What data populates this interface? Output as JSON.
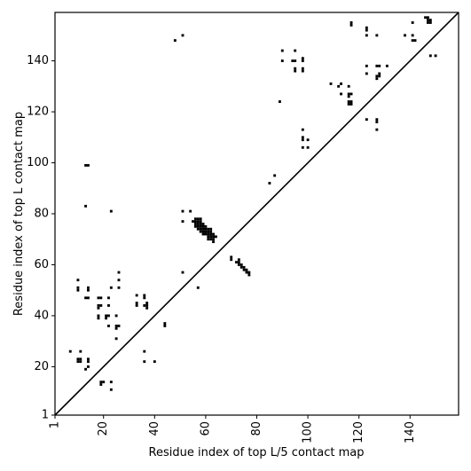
{
  "chart_data": {
    "type": "scatter",
    "title": "",
    "xlabel": "Residue index of top L/5 contact map",
    "ylabel": "Residue index of top L contact map",
    "xlim": [
      1,
      159
    ],
    "ylim": [
      1,
      159
    ],
    "xticks": [
      1,
      20,
      40,
      60,
      80,
      100,
      120,
      140
    ],
    "yticks": [
      1,
      20,
      40,
      60,
      80,
      100,
      120,
      140
    ],
    "grid": false,
    "diagonal": {
      "from": [
        1,
        1
      ],
      "to": [
        159,
        159
      ],
      "color": "#000000"
    },
    "marker_color": "#000000",
    "series": [
      {
        "name": "",
        "points": [
          [
            14,
            99
          ],
          [
            13,
            99
          ],
          [
            13,
            83
          ],
          [
            23,
            81
          ],
          [
            10,
            54
          ],
          [
            10,
            51
          ],
          [
            10,
            50
          ],
          [
            14,
            51
          ],
          [
            14,
            50
          ],
          [
            13,
            47
          ],
          [
            14,
            47
          ],
          [
            18,
            47
          ],
          [
            19,
            47
          ],
          [
            22,
            47
          ],
          [
            18,
            44
          ],
          [
            19,
            44
          ],
          [
            18,
            43
          ],
          [
            22,
            44
          ],
          [
            18,
            40
          ],
          [
            21,
            40
          ],
          [
            22,
            40
          ],
          [
            25,
            40
          ],
          [
            18,
            39
          ],
          [
            21,
            39
          ],
          [
            22,
            36
          ],
          [
            25,
            36
          ],
          [
            25,
            35
          ],
          [
            26,
            36
          ],
          [
            25,
            31
          ],
          [
            23,
            51
          ],
          [
            26,
            51
          ],
          [
            26,
            54
          ],
          [
            26,
            57
          ],
          [
            33,
            48
          ],
          [
            36,
            48
          ],
          [
            36,
            47
          ],
          [
            33,
            45
          ],
          [
            36,
            44
          ],
          [
            33,
            44
          ],
          [
            37,
            43
          ],
          [
            37,
            44
          ],
          [
            37,
            45
          ],
          [
            44,
            37
          ],
          [
            44,
            36
          ],
          [
            7,
            26
          ],
          [
            11,
            26
          ],
          [
            10,
            23
          ],
          [
            11,
            23
          ],
          [
            10,
            22
          ],
          [
            11,
            22
          ],
          [
            14,
            23
          ],
          [
            14,
            22
          ],
          [
            14,
            20
          ],
          [
            13,
            19
          ],
          [
            19,
            14
          ],
          [
            20,
            14
          ],
          [
            19,
            13
          ],
          [
            23,
            14
          ],
          [
            23,
            11
          ],
          [
            36,
            26
          ],
          [
            36,
            22
          ],
          [
            40,
            22
          ],
          [
            51,
            81
          ],
          [
            54,
            81
          ],
          [
            51,
            77
          ],
          [
            56,
            78
          ],
          [
            57,
            78
          ],
          [
            58,
            78
          ],
          [
            56,
            77
          ],
          [
            57,
            77
          ],
          [
            58,
            77
          ],
          [
            55,
            77
          ],
          [
            56,
            76
          ],
          [
            57,
            76
          ],
          [
            58,
            76
          ],
          [
            59,
            76
          ],
          [
            56,
            75
          ],
          [
            57,
            75
          ],
          [
            58,
            75
          ],
          [
            59,
            75
          ],
          [
            60,
            75
          ],
          [
            57,
            74
          ],
          [
            58,
            74
          ],
          [
            59,
            74
          ],
          [
            60,
            74
          ],
          [
            61,
            74
          ],
          [
            62,
            74
          ],
          [
            58,
            73
          ],
          [
            59,
            73
          ],
          [
            60,
            73
          ],
          [
            61,
            73
          ],
          [
            62,
            73
          ],
          [
            59,
            72
          ],
          [
            60,
            72
          ],
          [
            61,
            72
          ],
          [
            62,
            72
          ],
          [
            63,
            72
          ],
          [
            61,
            71
          ],
          [
            62,
            71
          ],
          [
            63,
            71
          ],
          [
            64,
            71
          ],
          [
            61,
            70
          ],
          [
            62,
            70
          ],
          [
            63,
            70
          ],
          [
            63,
            69
          ],
          [
            51,
            57
          ],
          [
            57,
            51
          ],
          [
            70,
            63
          ],
          [
            70,
            62
          ],
          [
            73,
            62
          ],
          [
            72,
            61
          ],
          [
            73,
            61
          ],
          [
            73,
            60
          ],
          [
            74,
            60
          ],
          [
            74,
            59
          ],
          [
            75,
            59
          ],
          [
            75,
            58
          ],
          [
            76,
            58
          ],
          [
            76,
            57
          ],
          [
            77,
            57
          ],
          [
            77,
            56
          ],
          [
            48,
            148
          ],
          [
            51,
            150
          ],
          [
            90,
            144
          ],
          [
            95,
            144
          ],
          [
            90,
            140
          ],
          [
            94,
            140
          ],
          [
            95,
            140
          ],
          [
            98,
            141
          ],
          [
            98,
            140
          ],
          [
            95,
            137
          ],
          [
            95,
            136
          ],
          [
            98,
            137
          ],
          [
            98,
            136
          ],
          [
            89,
            124
          ],
          [
            87,
            95
          ],
          [
            85,
            92
          ],
          [
            98,
            113
          ],
          [
            98,
            110
          ],
          [
            98,
            109
          ],
          [
            100,
            109
          ],
          [
            98,
            106
          ],
          [
            100,
            106
          ],
          [
            109,
            131
          ],
          [
            112,
            130
          ],
          [
            113,
            131
          ],
          [
            113,
            127
          ],
          [
            116,
            130
          ],
          [
            116,
            127
          ],
          [
            117,
            127
          ],
          [
            116,
            126
          ],
          [
            116,
            124
          ],
          [
            117,
            124
          ],
          [
            116,
            123
          ],
          [
            117,
            123
          ],
          [
            117,
            155
          ],
          [
            117,
            154
          ],
          [
            123,
            153
          ],
          [
            123,
            152
          ],
          [
            123,
            150
          ],
          [
            127,
            150
          ],
          [
            123,
            138
          ],
          [
            127,
            138
          ],
          [
            128,
            138
          ],
          [
            131,
            138
          ],
          [
            123,
            135
          ],
          [
            128,
            135
          ],
          [
            127,
            134
          ],
          [
            128,
            134
          ],
          [
            127,
            133
          ],
          [
            123,
            117
          ],
          [
            127,
            117
          ],
          [
            127,
            116
          ],
          [
            127,
            113
          ],
          [
            138,
            150
          ],
          [
            141,
            150
          ],
          [
            141,
            148
          ],
          [
            142,
            148
          ],
          [
            141,
            155
          ],
          [
            146,
            157
          ],
          [
            147,
            157
          ],
          [
            147,
            156
          ],
          [
            148,
            156
          ],
          [
            147,
            155
          ],
          [
            148,
            155
          ],
          [
            148,
            142
          ],
          [
            150,
            142
          ]
        ]
      }
    ]
  }
}
